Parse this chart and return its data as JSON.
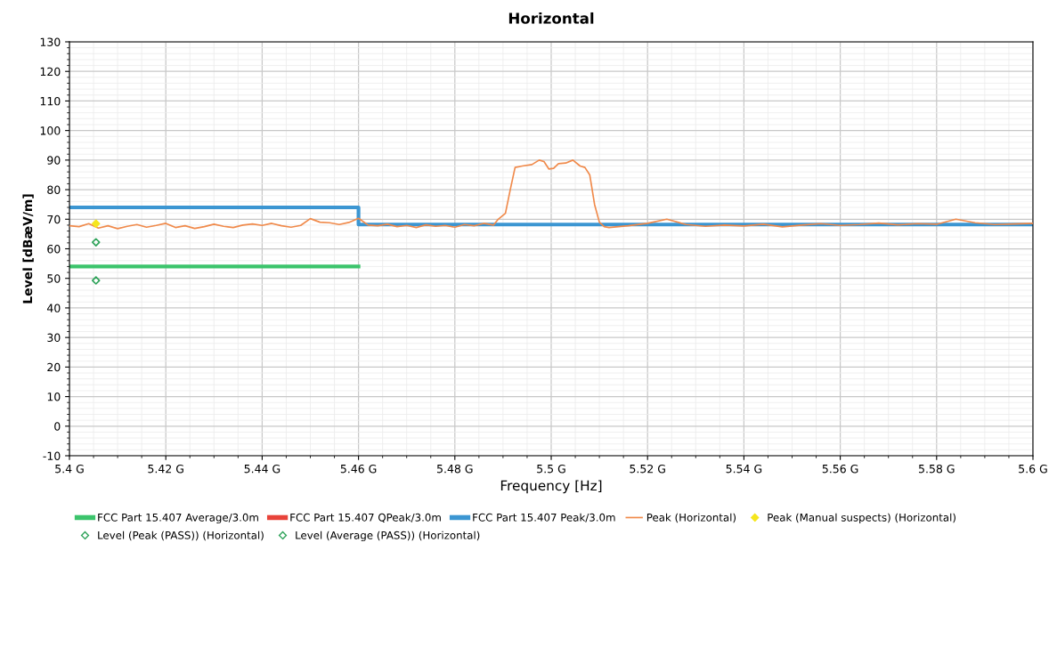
{
  "chart_data": {
    "type": "line",
    "title": "Horizontal",
    "xlabel": "Frequency [Hz]",
    "ylabel": "Level [dBæV/m]",
    "xlim": [
      5.4,
      5.6
    ],
    "xticks": [
      {
        "value": 5.4,
        "label": "5.4 G"
      },
      {
        "value": 5.42,
        "label": "5.42 G"
      },
      {
        "value": 5.44,
        "label": "5.44 G"
      },
      {
        "value": 5.46,
        "label": "5.46 G"
      },
      {
        "value": 5.48,
        "label": "5.48 G"
      },
      {
        "value": 5.5,
        "label": "5.5 G"
      },
      {
        "value": 5.52,
        "label": "5.52 G"
      },
      {
        "value": 5.54,
        "label": "5.54 G"
      },
      {
        "value": 5.56,
        "label": "5.56 G"
      },
      {
        "value": 5.58,
        "label": "5.58 G"
      },
      {
        "value": 5.6,
        "label": "5.6 G"
      }
    ],
    "ylim": [
      -10,
      130
    ],
    "yticks": [
      -10,
      0,
      10,
      20,
      30,
      40,
      50,
      60,
      70,
      80,
      90,
      100,
      110,
      120,
      130
    ],
    "grid": true,
    "legend": "bottom",
    "series": [
      {
        "name": "FCC Part 15.407 Average/3.0m",
        "type": "step",
        "color": "#3cc46c",
        "x": [
          5.4,
          5.46
        ],
        "values": [
          54,
          54
        ]
      },
      {
        "name": "FCC Part 15.407 QPeak/3.0m",
        "type": "step",
        "color": "#e8433a"
      },
      {
        "name": "FCC Part 15.407 Peak/3.0m",
        "type": "step",
        "color": "#3c96d2",
        "x": [
          5.4,
          5.46,
          5.46,
          5.6
        ],
        "values": [
          74,
          74,
          68.2,
          68.2
        ]
      },
      {
        "name": "Peak (Horizontal)",
        "color": "#f08a4b",
        "x": [
          5.4,
          5.402,
          5.404,
          5.406,
          5.408,
          5.41,
          5.412,
          5.414,
          5.416,
          5.418,
          5.42,
          5.422,
          5.424,
          5.426,
          5.428,
          5.43,
          5.432,
          5.434,
          5.436,
          5.438,
          5.44,
          5.442,
          5.444,
          5.446,
          5.448,
          5.45,
          5.452,
          5.454,
          5.456,
          5.458,
          5.46,
          5.462,
          5.464,
          5.466,
          5.468,
          5.47,
          5.472,
          5.474,
          5.476,
          5.478,
          5.48,
          5.482,
          5.484,
          5.486,
          5.488,
          5.489,
          5.4905,
          5.4915,
          5.4925,
          5.494,
          5.496,
          5.4975,
          5.4985,
          5.4995,
          5.5005,
          5.5015,
          5.503,
          5.5045,
          5.506,
          5.507,
          5.508,
          5.509,
          5.51,
          5.511,
          5.512,
          5.516,
          5.52,
          5.524,
          5.528,
          5.532,
          5.536,
          5.54,
          5.544,
          5.548,
          5.552,
          5.556,
          5.56,
          5.564,
          5.568,
          5.572,
          5.576,
          5.58,
          5.584,
          5.588,
          5.592,
          5.596,
          5.6
        ],
        "values": [
          67.8,
          67.5,
          68.5,
          67.0,
          67.8,
          66.8,
          67.6,
          68.2,
          67.3,
          67.9,
          68.6,
          67.2,
          67.8,
          66.9,
          67.5,
          68.3,
          67.6,
          67.2,
          68.0,
          68.4,
          67.9,
          68.6,
          67.8,
          67.3,
          67.9,
          70.2,
          69.0,
          68.8,
          68.2,
          68.9,
          70.3,
          68.0,
          67.8,
          68.3,
          67.5,
          67.9,
          67.2,
          68.1,
          67.6,
          67.9,
          67.3,
          68.2,
          67.8,
          68.6,
          68.0,
          70,
          72,
          80,
          87.5,
          88,
          88.5,
          90,
          89.5,
          87,
          87.2,
          88.8,
          89.0,
          90.0,
          88.0,
          87.5,
          85,
          75,
          69,
          67.5,
          67.2,
          67.8,
          68.6,
          70.0,
          68.2,
          67.6,
          68.0,
          67.7,
          68.3,
          67.4,
          68.0,
          68.5,
          67.9,
          68.2,
          68.7,
          68.1,
          68.5,
          68.3,
          70.0,
          68.8,
          68.2,
          68.4,
          68.6
        ]
      },
      {
        "name": "Peak (Manual suspects) (Horizontal)",
        "type": "scatter",
        "color": "#f5e61e",
        "marker": "diamond",
        "x": [
          5.4055
        ],
        "values": [
          68.5
        ]
      },
      {
        "name": "Level (Peak (PASS)) (Horizontal)",
        "type": "scatter",
        "color": "#2fa35a",
        "marker": "diamond",
        "x": [
          5.4055
        ],
        "values": [
          62.2
        ]
      },
      {
        "name": "Level (Average (PASS)) (Horizontal)",
        "type": "scatter",
        "color": "#2fa35a",
        "marker": "diamond",
        "x": [
          5.4055
        ],
        "values": [
          49.3
        ]
      }
    ]
  }
}
